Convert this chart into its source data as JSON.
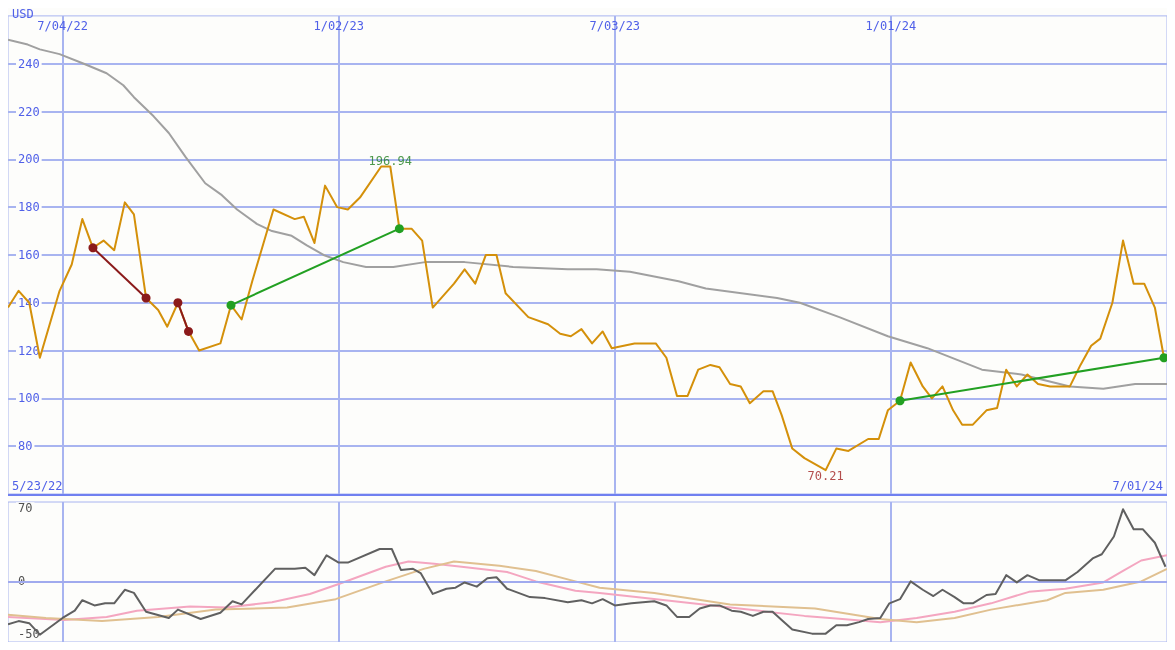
{
  "chart_data": [
    {
      "type": "line",
      "ylabel": "USD",
      "xlim": [
        "2022-05-29",
        "2024-07-01"
      ],
      "ylim": [
        60,
        260
      ],
      "xticks": [
        {
          "value": "2022-07-04",
          "label": "7/04/22"
        },
        {
          "value": "2023-01-02",
          "label": "1/02/23"
        },
        {
          "value": "2023-07-03",
          "label": "7/03/23"
        },
        {
          "value": "2024-01-01",
          "label": "1/01/24"
        }
      ],
      "yticks": [
        80,
        100,
        120,
        140,
        160,
        180,
        200,
        220,
        240
      ],
      "grid": true,
      "marker": "none",
      "annotations": [
        {
          "text": "196.94",
          "x": "2023-02-05",
          "y": 196.94
        },
        {
          "text": "70.21",
          "x": "2023-11-19",
          "y": 70.21
        },
        "5/23/22",
        "7/01/24"
      ],
      "series": [
        {
          "color": "#a0a0a0",
          "x": [
            "2022-05-29",
            "2022-06-11",
            "2022-06-19",
            "2022-07-02",
            "2022-07-18",
            "2022-08-02",
            "2022-08-13",
            "2022-08-20",
            "2022-09-02",
            "2022-09-12",
            "2022-09-23",
            "2022-10-06",
            "2022-10-17",
            "2022-10-27",
            "2022-11-09",
            "2022-11-19",
            "2022-12-02",
            "2022-12-12",
            "2022-12-23",
            "2023-01-05",
            "2023-01-20",
            "2023-02-07",
            "2023-02-28",
            "2023-03-26",
            "2023-04-27",
            "2023-06-02",
            "2023-06-21",
            "2023-07-13",
            "2023-08-14",
            "2023-09-01",
            "2023-10-18",
            "2023-11-02",
            "2023-11-28",
            "2023-12-30",
            "2024-01-25",
            "2024-03-01",
            "2024-03-27",
            "2024-04-28",
            "2024-05-20",
            "2024-06-10",
            "2024-07-01"
          ],
          "values": [
            250,
            248,
            246,
            244,
            240,
            236,
            231,
            226,
            218,
            211,
            201,
            190,
            185,
            179,
            173,
            170,
            168,
            164,
            160,
            157,
            155,
            155,
            157,
            157,
            155,
            154,
            154,
            153,
            149,
            146,
            142,
            140,
            134,
            126,
            121,
            112,
            110,
            105,
            104,
            106,
            106
          ]
        },
        {
          "color": "#d4900a",
          "x": [
            "2022-05-29",
            "2022-06-05",
            "2022-06-12",
            "2022-06-19",
            "2022-07-02",
            "2022-07-10",
            "2022-07-17",
            "2022-07-24",
            "2022-07-31",
            "2022-08-07",
            "2022-08-14",
            "2022-08-20",
            "2022-08-28",
            "2022-09-05",
            "2022-09-11",
            "2022-09-18",
            "2022-09-25",
            "2022-10-02",
            "2022-10-16",
            "2022-10-23",
            "2022-10-30",
            "2022-11-06",
            "2022-11-20",
            "2022-12-04",
            "2022-12-10",
            "2022-12-17",
            "2022-12-24",
            "2023-01-01",
            "2023-01-08",
            "2023-01-16",
            "2023-01-30",
            "2023-02-05",
            "2023-02-11",
            "2023-02-19",
            "2023-02-26",
            "2023-03-05",
            "2023-03-19",
            "2023-03-26",
            "2023-04-02",
            "2023-04-09",
            "2023-04-16",
            "2023-04-22",
            "2023-05-07",
            "2023-05-20",
            "2023-05-28",
            "2023-06-04",
            "2023-06-11",
            "2023-06-18",
            "2023-06-25",
            "2023-07-01",
            "2023-07-16",
            "2023-07-30",
            "2023-08-06",
            "2023-08-13",
            "2023-08-20",
            "2023-08-27",
            "2023-09-04",
            "2023-09-10",
            "2023-09-17",
            "2023-09-24",
            "2023-09-30",
            "2023-10-09",
            "2023-10-15",
            "2023-10-21",
            "2023-10-28",
            "2023-11-05",
            "2023-11-19",
            "2023-11-26",
            "2023-12-04",
            "2023-12-17",
            "2023-12-24",
            "2023-12-30",
            "2024-01-07",
            "2024-01-14",
            "2024-01-22",
            "2024-01-28",
            "2024-02-04",
            "2024-02-11",
            "2024-02-17",
            "2024-02-24",
            "2024-03-04",
            "2024-03-11",
            "2024-03-17",
            "2024-03-24",
            "2024-03-31",
            "2024-04-07",
            "2024-04-15",
            "2024-04-22",
            "2024-04-28",
            "2024-05-05",
            "2024-05-12",
            "2024-05-18",
            "2024-05-26",
            "2024-06-02",
            "2024-06-09",
            "2024-06-16",
            "2024-06-23",
            "2024-06-29"
          ],
          "values": [
            138,
            145,
            140,
            117,
            145,
            156,
            175,
            163,
            166,
            162,
            182,
            177,
            142,
            137,
            130,
            140,
            128,
            120,
            123,
            139,
            133,
            149,
            179,
            175,
            176,
            165,
            189,
            180,
            179,
            184,
            197,
            197,
            171,
            171,
            166,
            138,
            148,
            154,
            148,
            160,
            160,
            144,
            134,
            131,
            127,
            126,
            129,
            123,
            128,
            121,
            123,
            123,
            117,
            101,
            101,
            112,
            114,
            113,
            106,
            105,
            98,
            103,
            103,
            93,
            79,
            75,
            70,
            79,
            78,
            83,
            83,
            95,
            99,
            115,
            105,
            100,
            105,
            95,
            89,
            89,
            95,
            96,
            112,
            105,
            110,
            106,
            105,
            105,
            105,
            114,
            122,
            125,
            140,
            166,
            148,
            148,
            138,
            117
          ]
        },
        {
          "color": "#8b1a1a",
          "marker": "circle",
          "x": [
            "2022-07-24",
            "2022-08-28"
          ],
          "values": [
            163,
            142
          ]
        },
        {
          "color": "#8b1a1a",
          "marker": "circle",
          "x": [
            "2022-09-18",
            "2022-09-25"
          ],
          "values": [
            140,
            128
          ]
        },
        {
          "color": "#22a022",
          "marker": "circle",
          "x": [
            "2022-10-23",
            "2023-02-11"
          ],
          "values": [
            139,
            171
          ]
        },
        {
          "color": "#22a022",
          "marker": "circle",
          "x": [
            "2024-01-07",
            "2024-06-29"
          ],
          "values": [
            99,
            117
          ]
        }
      ]
    },
    {
      "type": "line",
      "xlim": [
        "2022-05-29",
        "2024-07-01"
      ],
      "ylim": [
        -58,
        76
      ],
      "tick_labels": "y",
      "xticks": [
        {
          "value": "2022-07-04",
          "label": null
        },
        {
          "value": "2023-01-02",
          "label": null
        },
        {
          "value": "2023-07-03",
          "label": null
        },
        {
          "value": "2024-01-01",
          "label": null
        }
      ],
      "yticks": [
        70,
        0,
        -50
      ],
      "grid": "x",
      "marker": "none",
      "ref_lines": [
        {
          "axis": "y",
          "value": 0,
          "color": "#a0aaee"
        }
      ],
      "series": [
        {
          "color": "#f4a6c0",
          "x": [
            "2022-05-29",
            "2022-07-05",
            "2022-08-02",
            "2022-08-22",
            "2022-09-26",
            "2022-10-20",
            "2022-11-19",
            "2022-12-14",
            "2023-01-03",
            "2023-02-02",
            "2023-02-17",
            "2023-03-06",
            "2023-03-24",
            "2023-04-23",
            "2023-05-12",
            "2023-06-07",
            "2023-06-23",
            "2023-07-17",
            "2023-08-23",
            "2023-09-29",
            "2023-11-05",
            "2023-11-30",
            "2023-12-25",
            "2024-01-18",
            "2024-02-12",
            "2024-03-07",
            "2024-04-01",
            "2024-04-25",
            "2024-05-20",
            "2024-06-02",
            "2024-06-14",
            "2024-07-01"
          ],
          "values": [
            -34,
            -37,
            -34,
            -28,
            -24,
            -25,
            -20,
            -12,
            -2,
            14,
            19,
            17,
            14,
            9,
            0,
            -9,
            -11,
            -15,
            -21,
            -27,
            -33,
            -36,
            -39,
            -35,
            -29,
            -21,
            -10,
            -7,
            -1,
            10,
            20,
            25
          ]
        },
        {
          "color": "#e0c090",
          "x": [
            "2022-05-29",
            "2022-06-23",
            "2022-07-30",
            "2022-09-05",
            "2022-10-13",
            "2022-11-29",
            "2022-12-31",
            "2023-02-02",
            "2023-02-27",
            "2023-03-19",
            "2023-04-18",
            "2023-05-12",
            "2023-06-07",
            "2023-06-23",
            "2023-07-29",
            "2023-09-17",
            "2023-11-12",
            "2023-12-25",
            "2024-01-18",
            "2024-02-12",
            "2024-03-07",
            "2024-04-13",
            "2024-04-25",
            "2024-05-20",
            "2024-06-14",
            "2024-07-01"
          ],
          "values": [
            -32,
            -35,
            -38,
            -34,
            -27,
            -25,
            -17,
            0,
            12,
            19,
            15,
            10,
            0,
            -6,
            -11,
            -22,
            -26,
            -36,
            -39,
            -35,
            -27,
            -18,
            -11,
            -8,
            0,
            12
          ]
        },
        {
          "color": "#606060",
          "x": [
            "2022-05-29",
            "2022-06-05",
            "2022-06-12",
            "2022-06-19",
            "2022-07-04",
            "2022-07-12",
            "2022-07-17",
            "2022-07-25",
            "2022-08-01",
            "2022-08-07",
            "2022-08-14",
            "2022-08-20",
            "2022-08-28",
            "2022-09-12",
            "2022-09-18",
            "2022-10-03",
            "2022-10-16",
            "2022-10-24",
            "2022-10-30",
            "2022-11-21",
            "2022-12-04",
            "2022-12-11",
            "2022-12-17",
            "2022-12-25",
            "2023-01-02",
            "2023-01-08",
            "2023-01-29",
            "2023-02-06",
            "2023-02-12",
            "2023-02-20",
            "2023-02-25",
            "2023-03-05",
            "2023-03-14",
            "2023-03-20",
            "2023-03-26",
            "2023-04-03",
            "2023-04-10",
            "2023-04-16",
            "2023-04-23",
            "2023-05-08",
            "2023-05-18",
            "2023-06-02",
            "2023-06-11",
            "2023-06-18",
            "2023-06-25",
            "2023-07-03",
            "2023-07-14",
            "2023-07-29",
            "2023-08-06",
            "2023-08-13",
            "2023-08-21",
            "2023-08-28",
            "2023-09-04",
            "2023-09-10",
            "2023-09-18",
            "2023-09-24",
            "2023-10-02",
            "2023-10-09",
            "2023-10-15",
            "2023-10-21",
            "2023-10-28",
            "2023-11-10",
            "2023-11-19",
            "2023-11-26",
            "2023-12-03",
            "2023-12-11",
            "2023-12-17",
            "2023-12-25",
            "2023-12-31",
            "2024-01-07",
            "2024-01-14",
            "2024-01-22",
            "2024-01-29",
            "2024-02-04",
            "2024-02-12",
            "2024-02-18",
            "2024-02-24",
            "2024-03-04",
            "2024-03-10",
            "2024-03-17",
            "2024-03-24",
            "2024-03-31",
            "2024-04-08",
            "2024-04-25",
            "2024-05-03",
            "2024-05-13",
            "2024-05-19",
            "2024-05-27",
            "2024-06-02",
            "2024-06-09",
            "2024-06-15",
            "2024-06-23",
            "2024-06-30"
          ],
          "values": [
            -41,
            -38,
            -40,
            -51,
            -35,
            -28,
            -18,
            -23,
            -21,
            -21,
            -8,
            -11,
            -29,
            -35,
            -27,
            -36,
            -30,
            -19,
            -22,
            12,
            12,
            13,
            6,
            25,
            18,
            18,
            31,
            31,
            11,
            12,
            8,
            -12,
            -7,
            -6,
            -1,
            -5,
            3,
            4,
            -7,
            -15,
            -16,
            -20,
            -18,
            -21,
            -17,
            -23,
            -21,
            -19,
            -23,
            -34,
            -34,
            -26,
            -23,
            -23,
            -28,
            -29,
            -33,
            -29,
            -29,
            -37,
            -46,
            -50,
            -50,
            -42,
            -42,
            -39,
            -36,
            -35,
            -21,
            -17,
            0,
            -8,
            -14,
            -8,
            -15,
            -21,
            -21,
            -13,
            -12,
            6,
            -1,
            6,
            1,
            1,
            9,
            22,
            26,
            43,
            69,
            50,
            50,
            37,
            14
          ]
        }
      ]
    }
  ]
}
